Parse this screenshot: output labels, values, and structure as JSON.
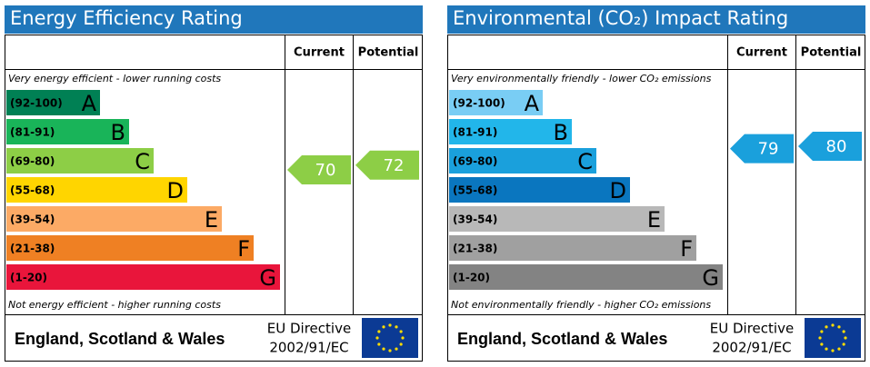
{
  "panels": [
    {
      "title": "Energy Efficiency Rating",
      "columns": [
        "Current",
        "Potential"
      ],
      "top_note": "Very energy efficient - lower running costs",
      "bottom_note": "Not energy efficient - higher running costs",
      "bands": [
        {
          "range": "(92-100)",
          "letter": "A",
          "color": "#008054"
        },
        {
          "range": "(81-91)",
          "letter": "B",
          "color": "#19b459"
        },
        {
          "range": "(69-80)",
          "letter": "C",
          "color": "#8dce46"
        },
        {
          "range": "(55-68)",
          "letter": "D",
          "color": "#ffd500"
        },
        {
          "range": "(39-54)",
          "letter": "E",
          "color": "#fcaa65"
        },
        {
          "range": "(21-38)",
          "letter": "F",
          "color": "#ef8023"
        },
        {
          "range": "(1-20)",
          "letter": "G",
          "color": "#e9153b"
        }
      ],
      "current": 70,
      "potential": 72,
      "footer": {
        "region": "England, Scotland & Wales",
        "directive": [
          "EU Directive",
          "2002/91/EC"
        ]
      }
    },
    {
      "title": "Environmental (CO₂) Impact Rating",
      "columns": [
        "Current",
        "Potential"
      ],
      "top_note": "Very environmentally friendly - lower CO₂ emissions",
      "bottom_note": "Not environmentally friendly - higher CO₂ emissions",
      "bands": [
        {
          "range": "(92-100)",
          "letter": "A",
          "color": "#79cdf4"
        },
        {
          "range": "(81-91)",
          "letter": "B",
          "color": "#22b6ea"
        },
        {
          "range": "(69-80)",
          "letter": "C",
          "color": "#1aa0dc"
        },
        {
          "range": "(55-68)",
          "letter": "D",
          "color": "#0a76bf"
        },
        {
          "range": "(39-54)",
          "letter": "E",
          "color": "#b8b8b8"
        },
        {
          "range": "(21-38)",
          "letter": "F",
          "color": "#a0a0a0"
        },
        {
          "range": "(1-20)",
          "letter": "G",
          "color": "#838383"
        }
      ],
      "current": 79,
      "potential": 80,
      "footer": {
        "region": "England, Scotland & Wales",
        "directive": [
          "EU Directive",
          "2002/91/EC"
        ]
      }
    }
  ]
}
